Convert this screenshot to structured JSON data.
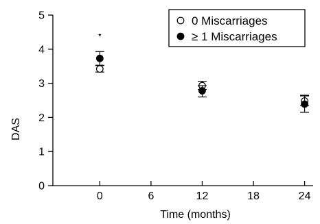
{
  "chart_data": {
    "type": "scatter",
    "title": "",
    "xlabel": "Time (months)",
    "ylabel": "DAS",
    "x_ticks": [
      0,
      6,
      12,
      18,
      24
    ],
    "y_ticks": [
      0,
      1,
      2,
      3,
      4,
      5
    ],
    "xlim": [
      -5.5,
      25
    ],
    "ylim": [
      0,
      5
    ],
    "grid": false,
    "legend_position": "top-right",
    "series": [
      {
        "name": "0 Miscarriages",
        "marker": "open-circle",
        "color": "#000000",
        "points": [
          {
            "x": 0,
            "y": 3.42,
            "err_low": 3.33,
            "err_high": 3.52
          },
          {
            "x": 12,
            "y": 2.93,
            "err_low": 2.82,
            "err_high": 3.06
          },
          {
            "x": 24,
            "y": 2.48,
            "err_low": 2.35,
            "err_high": 2.63
          }
        ]
      },
      {
        "name": "≥ 1 Miscarriages",
        "marker": "filled-circle",
        "color": "#000000",
        "points": [
          {
            "x": 0,
            "y": 3.73,
            "err_low": 3.53,
            "err_high": 3.93
          },
          {
            "x": 12,
            "y": 2.78,
            "err_low": 2.6,
            "err_high": 2.93
          },
          {
            "x": 24,
            "y": 2.39,
            "err_low": 2.15,
            "err_high": 2.65
          }
        ]
      }
    ],
    "annotations": [
      {
        "text": "⋆",
        "x": 0,
        "y": 4.44
      }
    ]
  }
}
